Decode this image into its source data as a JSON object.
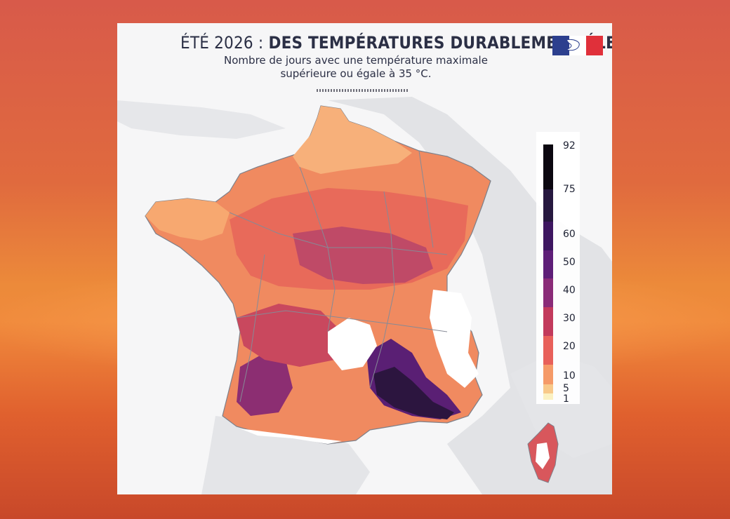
{
  "title": {
    "prefix": "ÉTÉ 2026 : ",
    "main": "DES TEMPÉRATURES DURABLEMENT ÉLEVÉES"
  },
  "subtitle": {
    "line1": "Nombre de jours avec une température maximale",
    "line2": "supérieure ou égale à 35 °C."
  },
  "logo_icon": "marianne-flag-icon",
  "legend": {
    "ticks": [
      "92",
      "75",
      "60",
      "50",
      "40",
      "30",
      "20",
      "10",
      "5",
      "1"
    ],
    "colors": [
      "#0b0710",
      "#26183f",
      "#3d1660",
      "#5e1e78",
      "#8a2b78",
      "#c23a5c",
      "#e8605a",
      "#f59a68",
      "#f8c98a",
      "#fbf1c2"
    ]
  },
  "colors": {
    "land_low": "#f6a06a",
    "land_mid": "#ea6a5a",
    "land_high": "#b23a66",
    "land_very_high": "#4a1c66",
    "mountains": "#ffffff",
    "borders": "#8a8f99",
    "sea": "#f6f6f7"
  }
}
